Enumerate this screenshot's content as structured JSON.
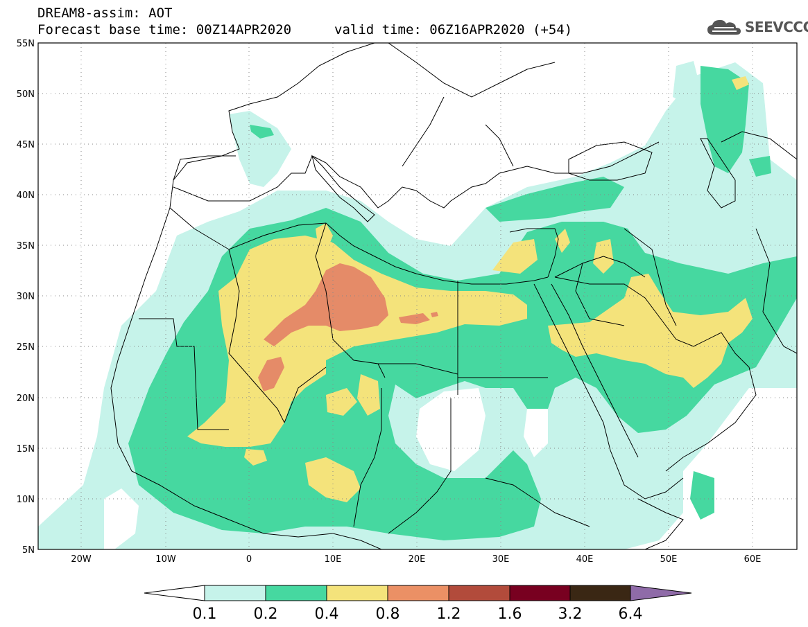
{
  "header": {
    "title_line1": "DREAM8-assim: AOT",
    "title_line2": "Forecast base time: 00Z14APR2020",
    "valid_time": "valid time: 06Z16APR2020 (+54)",
    "logo_text": "SEEVCCC",
    "logo_icon": "cloud-icon"
  },
  "map": {
    "lon_range": [
      -25,
      65
    ],
    "lat_range": [
      5,
      55
    ],
    "lat_labels": [
      "55N",
      "50N",
      "45N",
      "40N",
      "35N",
      "30N",
      "25N",
      "20N",
      "15N",
      "10N",
      "5N"
    ],
    "lat_values": [
      55,
      50,
      45,
      40,
      35,
      30,
      25,
      20,
      15,
      10,
      5
    ],
    "lon_labels": [
      "20W",
      "10W",
      "0",
      "10E",
      "20E",
      "30E",
      "40E",
      "50E",
      "60E"
    ],
    "lon_values": [
      -20,
      -10,
      0,
      10,
      20,
      30,
      40,
      50,
      60
    ]
  },
  "colorbar": {
    "labels": [
      "0.1",
      "0.2",
      "0.4",
      "0.8",
      "1.2",
      "1.6",
      "3.2",
      "6.4"
    ],
    "colors": [
      "#ffffff",
      "#c6f3ea",
      "#46d8a0",
      "#f4e37b",
      "#eb9065",
      "#b24b3b",
      "#780020",
      "#3a2714",
      "#8f6ba8"
    ]
  },
  "colors": {
    "level1": "#c6f3ea",
    "level2": "#46d8a0",
    "level3": "#f4e37b",
    "level4": "#e58b68"
  }
}
